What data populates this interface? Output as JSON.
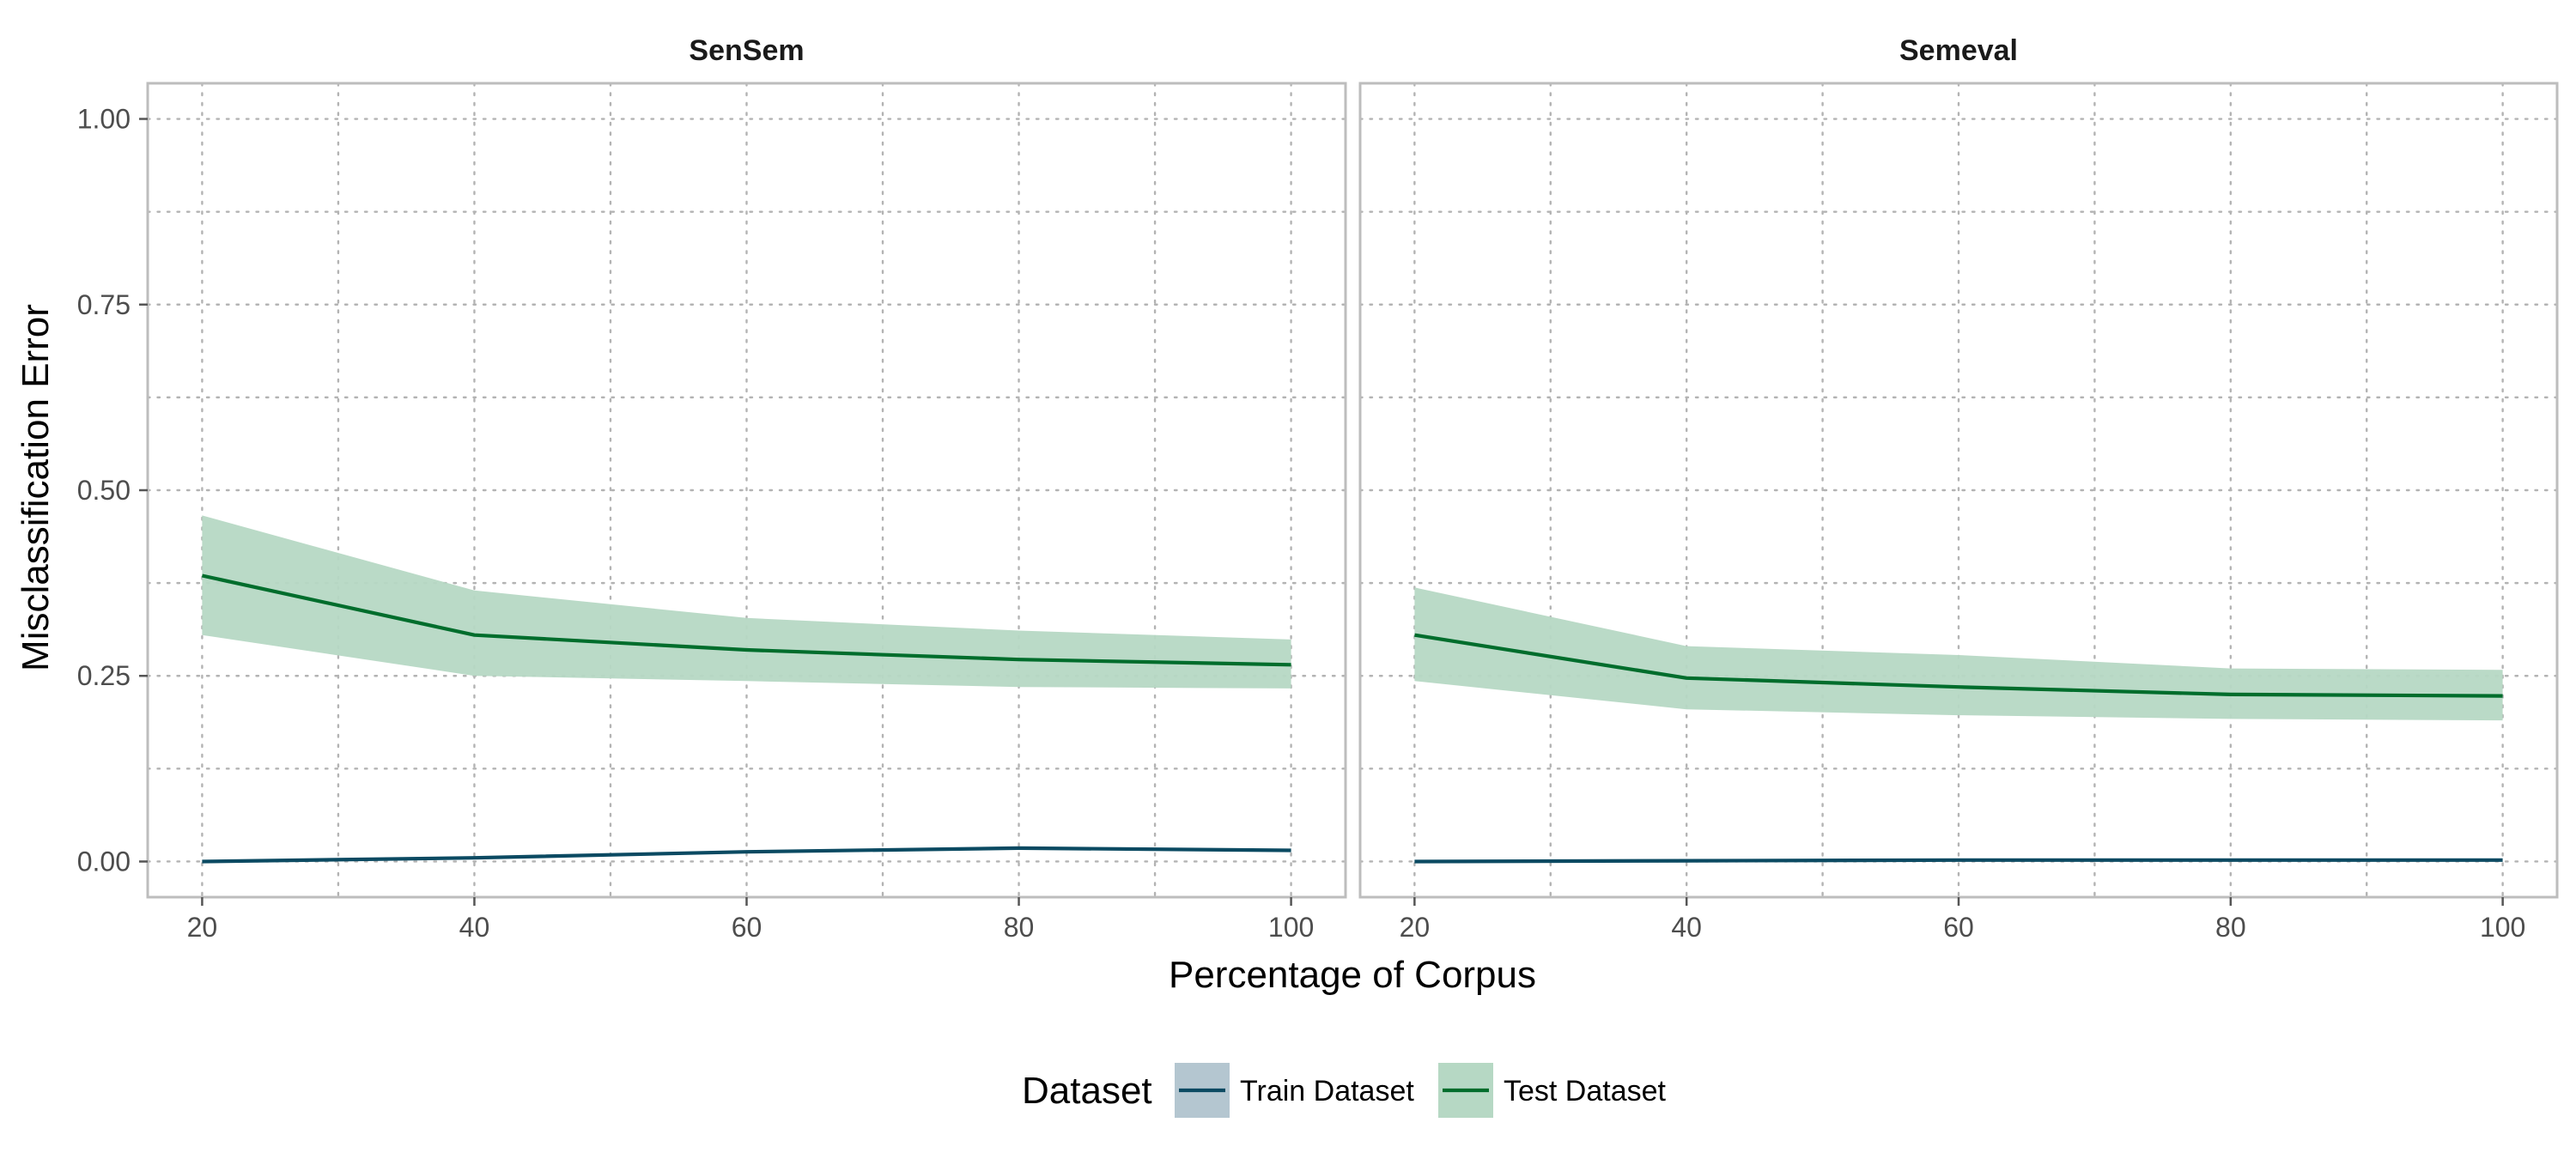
{
  "chart_data": {
    "type": "line",
    "panels": [
      {
        "title": "SenSem",
        "series": [
          {
            "name": "Train Dataset",
            "color": "#0b4a62",
            "fill": "#b4c6d0",
            "x": [
              20,
              40,
              60,
              80,
              100
            ],
            "y": [
              0.0,
              0.005,
              0.013,
              0.018,
              0.015
            ]
          },
          {
            "name": "Test Dataset",
            "color": "#006d2c",
            "fill": "#b6d8c4",
            "x": [
              20,
              40,
              60,
              80,
              100
            ],
            "y": [
              0.385,
              0.305,
              0.285,
              0.272,
              0.265
            ],
            "lower": [
              0.305,
              0.25,
              0.243,
              0.235,
              0.233
            ],
            "upper": [
              0.466,
              0.365,
              0.328,
              0.311,
              0.299
            ]
          }
        ]
      },
      {
        "title": "Semeval",
        "series": [
          {
            "name": "Train Dataset",
            "color": "#0b4a62",
            "fill": "#b4c6d0",
            "x": [
              20,
              40,
              60,
              80,
              100
            ],
            "y": [
              0.0,
              0.001,
              0.002,
              0.002,
              0.002
            ]
          },
          {
            "name": "Test Dataset",
            "color": "#006d2c",
            "fill": "#b6d8c4",
            "x": [
              20,
              40,
              60,
              80,
              100
            ],
            "y": [
              0.305,
              0.247,
              0.235,
              0.225,
              0.223
            ],
            "lower": [
              0.243,
              0.205,
              0.197,
              0.192,
              0.19
            ],
            "upper": [
              0.369,
              0.29,
              0.278,
              0.26,
              0.258
            ]
          }
        ]
      }
    ],
    "xlabel": "Percentage of Corpus",
    "ylabel": "Misclassification Error",
    "xlim": [
      16,
      104
    ],
    "ylim": [
      -0.048,
      1.048
    ],
    "xticks": [
      20,
      40,
      60,
      80,
      100
    ],
    "xticklabels": [
      "20",
      "40",
      "60",
      "80",
      "100"
    ],
    "yticks": [
      0.0,
      0.25,
      0.5,
      0.75,
      1.0
    ],
    "yticklabels": [
      "0.00",
      "0.25",
      "0.50",
      "0.75",
      "1.00"
    ],
    "xminor": [
      30,
      50,
      70,
      90
    ],
    "yminor": [
      0.125,
      0.375,
      0.625,
      0.875
    ],
    "grid": true,
    "legend": {
      "title": "Dataset",
      "position": "bottom",
      "entries": [
        "Train Dataset",
        "Test Dataset"
      ]
    }
  }
}
